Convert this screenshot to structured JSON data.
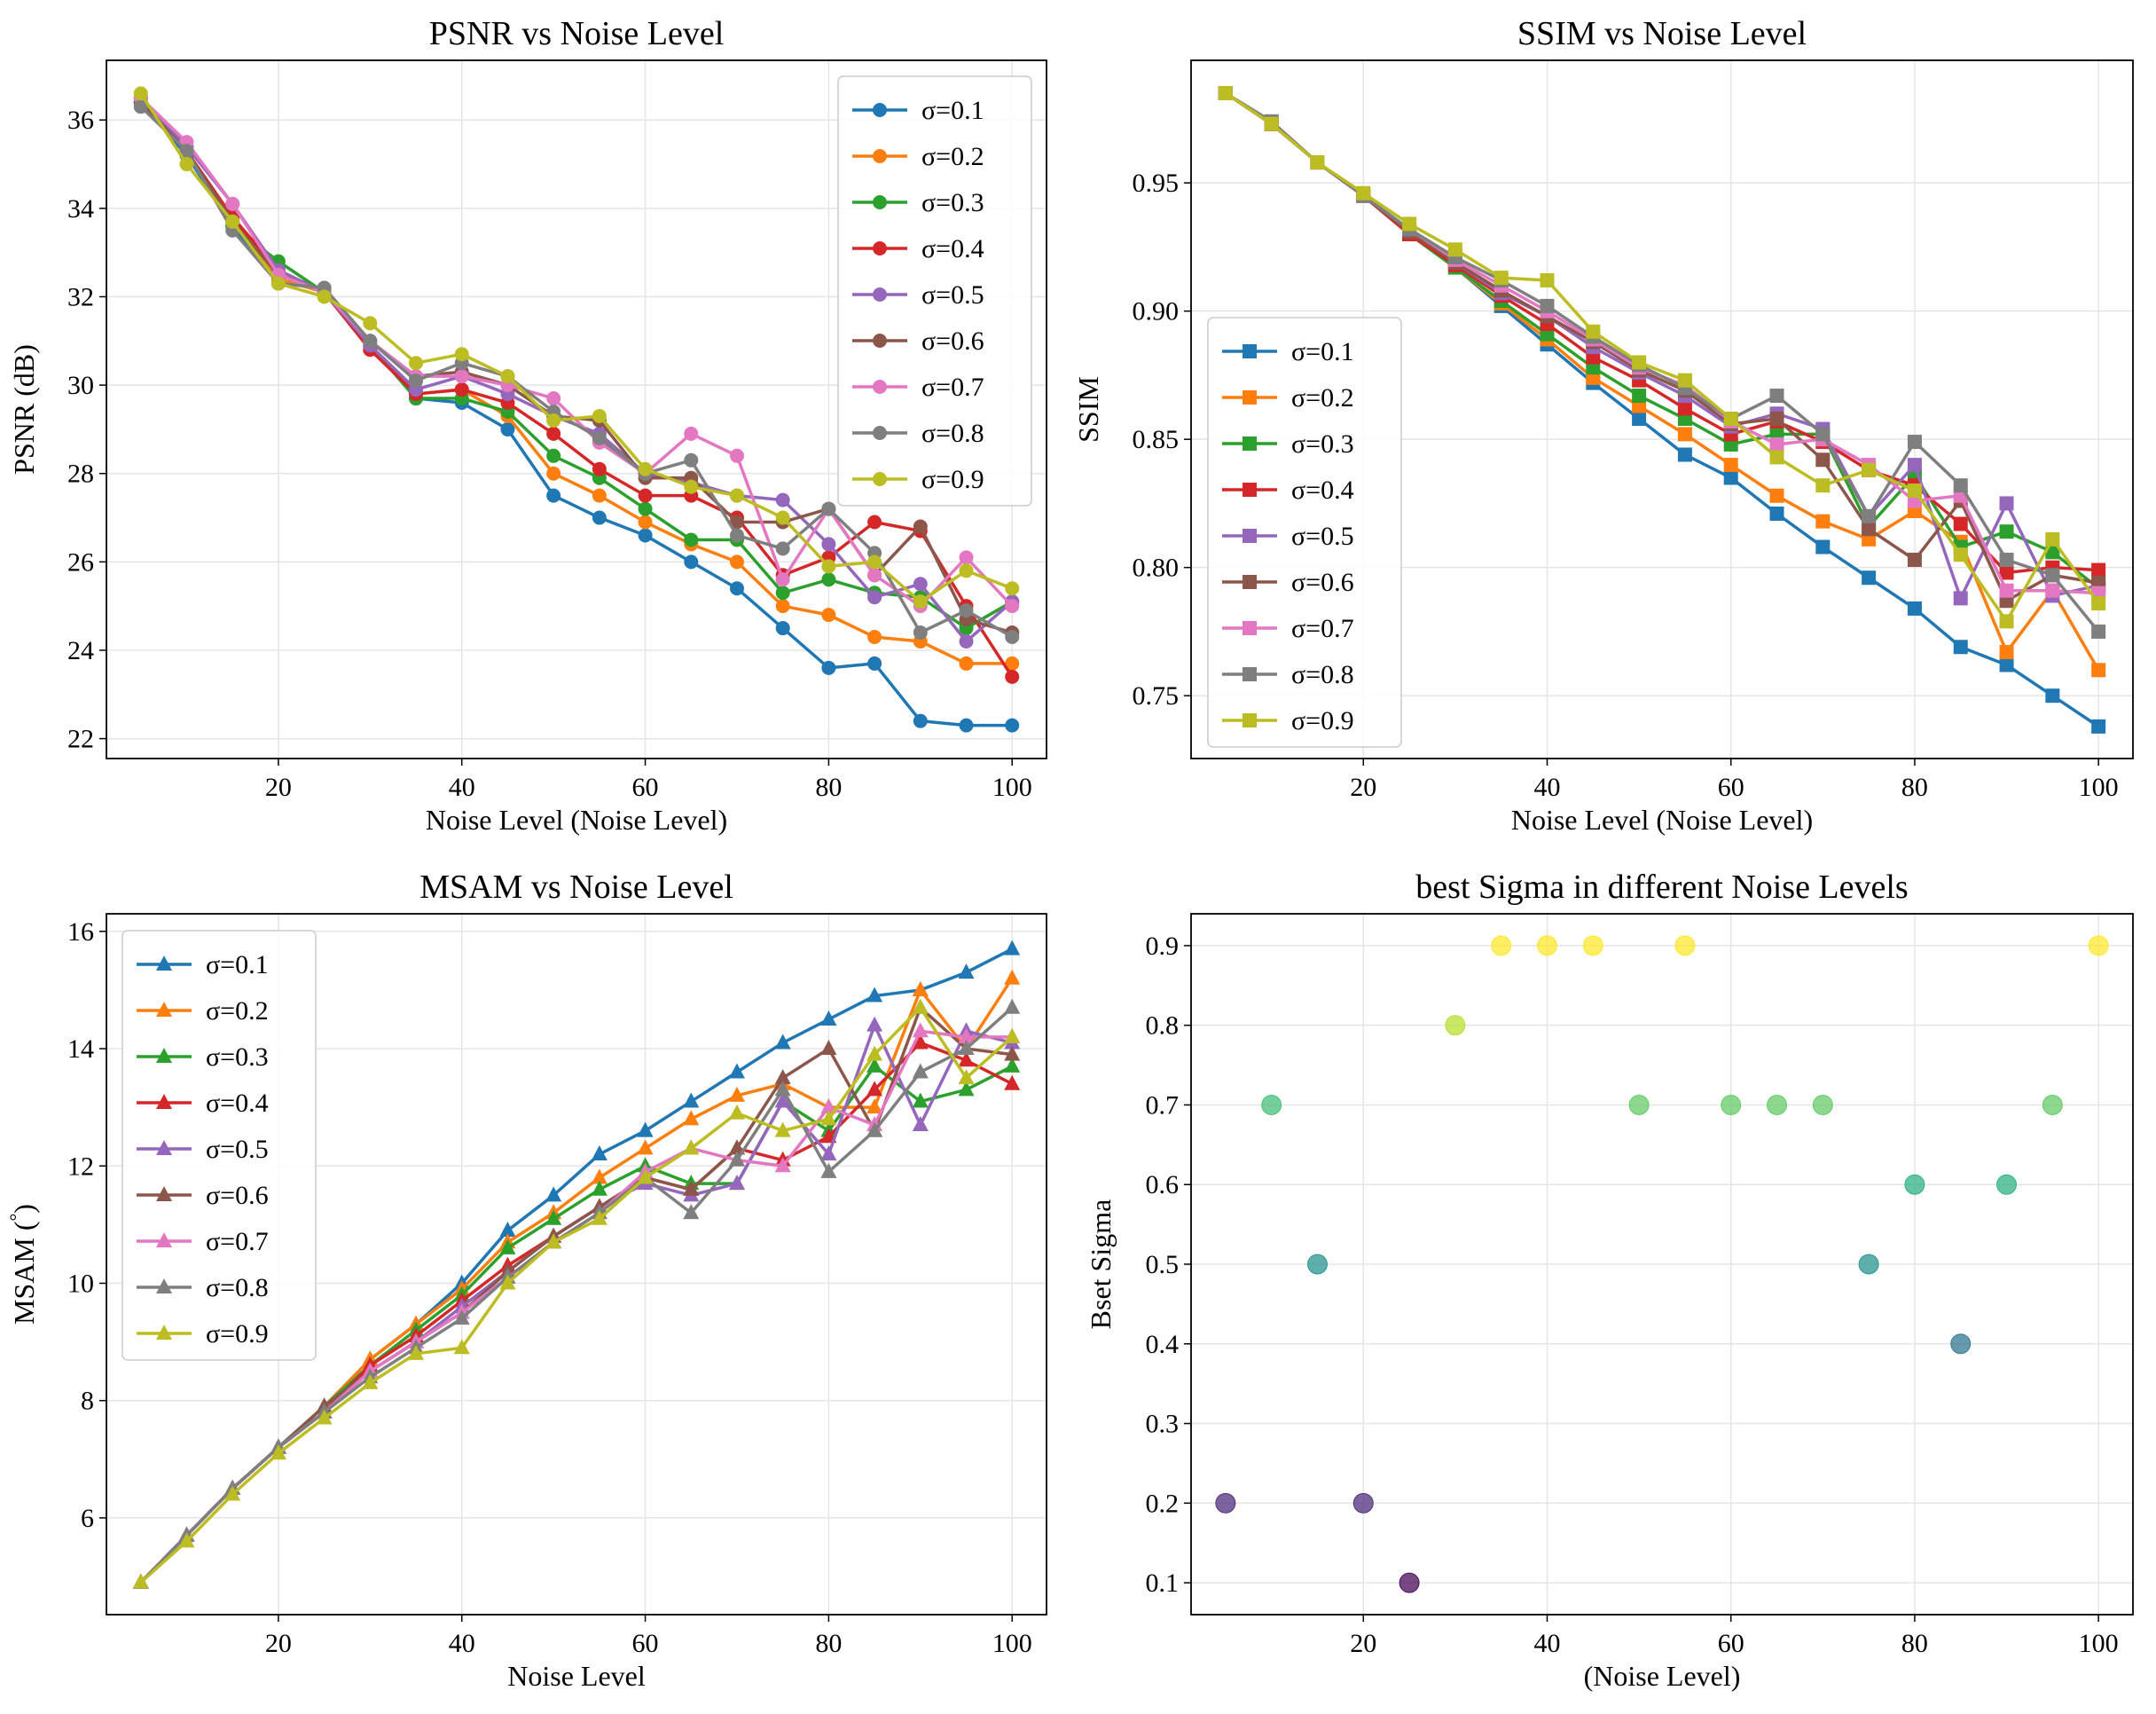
{
  "chart_data": [
    {
      "type": "line",
      "title": "PSNR vs Noise Level",
      "xlabel": "Noise Level (Noise Level)",
      "ylabel": "PSNR (dB)",
      "xlim": [
        1.25,
        103.75
      ],
      "ylim": [
        21.55,
        37.35
      ],
      "xticks": [
        20,
        40,
        60,
        80,
        100
      ],
      "yticks": [
        22,
        24,
        26,
        28,
        30,
        32,
        34,
        36
      ],
      "tick_decimals": 0,
      "marker": "circle",
      "grid": true,
      "legend_loc": "top-right",
      "x": [
        5,
        10,
        15,
        20,
        25,
        30,
        35,
        40,
        45,
        50,
        55,
        60,
        65,
        70,
        75,
        80,
        85,
        90,
        95,
        100
      ],
      "series": [
        {
          "name": "σ=0.1",
          "color": "#1f77b4",
          "values": [
            36.4,
            35.2,
            33.6,
            32.3,
            32.2,
            30.9,
            29.7,
            29.6,
            29.0,
            27.5,
            27.0,
            26.6,
            26.0,
            25.4,
            24.5,
            23.6,
            23.7,
            22.4,
            22.3,
            22.3
          ]
        },
        {
          "name": "σ=0.2",
          "color": "#ff7f0e",
          "values": [
            36.4,
            35.3,
            33.7,
            32.4,
            32.1,
            30.9,
            29.8,
            29.9,
            29.3,
            28.0,
            27.5,
            26.9,
            26.4,
            26.0,
            25.0,
            24.8,
            24.3,
            24.2,
            23.7,
            23.7
          ]
        },
        {
          "name": "σ=0.3",
          "color": "#2ca02c",
          "values": [
            36.4,
            35.3,
            33.6,
            32.8,
            32.1,
            30.9,
            29.7,
            29.7,
            29.4,
            28.4,
            27.9,
            27.2,
            26.5,
            26.5,
            25.3,
            25.6,
            25.3,
            25.2,
            24.5,
            25.1
          ]
        },
        {
          "name": "σ=0.4",
          "color": "#d62728",
          "values": [
            36.5,
            35.3,
            33.8,
            32.6,
            32.1,
            30.8,
            29.8,
            29.9,
            29.6,
            28.9,
            28.1,
            27.5,
            27.5,
            27.0,
            25.7,
            26.1,
            26.9,
            26.7,
            25.0,
            23.4
          ]
        },
        {
          "name": "σ=0.5",
          "color": "#9467bd",
          "values": [
            36.5,
            35.4,
            34.1,
            32.6,
            32.1,
            30.9,
            29.9,
            30.2,
            29.8,
            29.3,
            28.9,
            28.0,
            27.8,
            27.5,
            27.4,
            26.4,
            25.2,
            25.5,
            24.2,
            25.1
          ]
        },
        {
          "name": "σ=0.6",
          "color": "#8c564b",
          "values": [
            36.4,
            35.3,
            33.7,
            32.5,
            32.1,
            31.0,
            30.2,
            30.3,
            30.0,
            29.3,
            29.2,
            27.9,
            27.9,
            26.9,
            26.9,
            27.2,
            25.7,
            26.8,
            24.7,
            24.4
          ]
        },
        {
          "name": "σ=0.7",
          "color": "#e377c2",
          "values": [
            36.5,
            35.5,
            34.1,
            32.5,
            32.1,
            31.0,
            30.2,
            30.2,
            30.0,
            29.7,
            28.7,
            28.0,
            28.9,
            28.4,
            25.6,
            27.2,
            25.7,
            25.0,
            26.1,
            25.0
          ]
        },
        {
          "name": "σ=0.8",
          "color": "#7f7f7f",
          "values": [
            36.3,
            35.3,
            33.5,
            32.3,
            32.2,
            31.0,
            30.1,
            30.5,
            30.2,
            29.4,
            28.8,
            28.0,
            28.3,
            26.6,
            26.3,
            27.2,
            26.2,
            24.4,
            24.9,
            24.3
          ]
        },
        {
          "name": "σ=0.9",
          "color": "#bcbd22",
          "values": [
            36.6,
            35.0,
            33.7,
            32.3,
            32.0,
            31.4,
            30.5,
            30.7,
            30.2,
            29.2,
            29.3,
            28.1,
            27.7,
            27.5,
            27.0,
            25.9,
            26.0,
            25.1,
            25.8,
            25.4
          ]
        }
      ]
    },
    {
      "type": "line",
      "title": "SSIM vs Noise Level",
      "xlabel": "Noise Level (Noise Level)",
      "ylabel": "SSIM",
      "xlim": [
        1.25,
        103.75
      ],
      "ylim": [
        0.7255,
        0.9978
      ],
      "xticks": [
        20,
        40,
        60,
        80,
        100
      ],
      "yticks": [
        0.75,
        0.8,
        0.85,
        0.9,
        0.95
      ],
      "tick_decimals": 2,
      "marker": "square",
      "grid": true,
      "legend_loc": "center-left",
      "x": [
        5,
        10,
        15,
        20,
        25,
        30,
        35,
        40,
        45,
        50,
        55,
        60,
        65,
        70,
        75,
        80,
        85,
        90,
        95,
        100
      ],
      "series": [
        {
          "name": "σ=0.1",
          "color": "#1f77b4",
          "values": [
            0.985,
            0.973,
            0.958,
            0.945,
            0.93,
            0.917,
            0.902,
            0.887,
            0.872,
            0.858,
            0.844,
            0.835,
            0.821,
            0.808,
            0.796,
            0.784,
            0.769,
            0.762,
            0.75,
            0.738
          ]
        },
        {
          "name": "σ=0.2",
          "color": "#ff7f0e",
          "values": [
            0.985,
            0.973,
            0.958,
            0.945,
            0.93,
            0.917,
            0.903,
            0.889,
            0.874,
            0.863,
            0.852,
            0.84,
            0.828,
            0.818,
            0.811,
            0.822,
            0.81,
            0.767,
            0.791,
            0.76
          ]
        },
        {
          "name": "σ=0.3",
          "color": "#2ca02c",
          "values": [
            0.985,
            0.973,
            0.958,
            0.945,
            0.93,
            0.917,
            0.904,
            0.891,
            0.878,
            0.867,
            0.858,
            0.848,
            0.852,
            0.852,
            0.816,
            0.836,
            0.808,
            0.814,
            0.806,
            0.792
          ]
        },
        {
          "name": "σ=0.4",
          "color": "#d62728",
          "values": [
            0.985,
            0.973,
            0.958,
            0.945,
            0.93,
            0.918,
            0.906,
            0.895,
            0.882,
            0.873,
            0.862,
            0.852,
            0.857,
            0.849,
            0.838,
            0.832,
            0.817,
            0.798,
            0.8,
            0.799
          ]
        },
        {
          "name": "σ=0.5",
          "color": "#9467bd",
          "values": [
            0.985,
            0.973,
            0.958,
            0.945,
            0.931,
            0.919,
            0.907,
            0.898,
            0.886,
            0.876,
            0.867,
            0.855,
            0.86,
            0.854,
            0.82,
            0.84,
            0.788,
            0.825,
            0.789,
            0.793
          ]
        },
        {
          "name": "σ=0.6",
          "color": "#8c564b",
          "values": [
            0.985,
            0.973,
            0.958,
            0.945,
            0.931,
            0.919,
            0.908,
            0.898,
            0.888,
            0.877,
            0.869,
            0.856,
            0.858,
            0.842,
            0.815,
            0.803,
            0.826,
            0.787,
            0.797,
            0.794
          ]
        },
        {
          "name": "σ=0.7",
          "color": "#e377c2",
          "values": [
            0.985,
            0.973,
            0.958,
            0.945,
            0.932,
            0.92,
            0.91,
            0.9,
            0.889,
            0.878,
            0.871,
            0.857,
            0.848,
            0.85,
            0.84,
            0.826,
            0.828,
            0.791,
            0.791,
            0.79
          ]
        },
        {
          "name": "σ=0.8",
          "color": "#7f7f7f",
          "values": [
            0.985,
            0.974,
            0.958,
            0.945,
            0.932,
            0.921,
            0.912,
            0.902,
            0.89,
            0.879,
            0.87,
            0.858,
            0.867,
            0.852,
            0.82,
            0.849,
            0.832,
            0.803,
            0.797,
            0.775
          ]
        },
        {
          "name": "σ=0.9",
          "color": "#bcbd22",
          "values": [
            0.985,
            0.973,
            0.958,
            0.946,
            0.934,
            0.924,
            0.913,
            0.912,
            0.892,
            0.88,
            0.873,
            0.858,
            0.843,
            0.832,
            0.838,
            0.83,
            0.805,
            0.779,
            0.811,
            0.786
          ]
        }
      ]
    },
    {
      "type": "line",
      "title": "MSAM vs Noise Level",
      "xlabel": "Noise Level",
      "ylabel": "MSAM (°)",
      "ylabel_main": "MSAM (",
      "ylabel_sup": "°",
      "ylabel_end": ")",
      "xlim": [
        1.25,
        103.75
      ],
      "ylim": [
        4.35,
        16.3
      ],
      "xticks": [
        20,
        40,
        60,
        80,
        100
      ],
      "yticks": [
        6,
        8,
        10,
        12,
        14,
        16
      ],
      "tick_decimals": 0,
      "marker": "triangle",
      "grid": true,
      "legend_loc": "top-left",
      "x": [
        5,
        10,
        15,
        20,
        25,
        30,
        35,
        40,
        45,
        50,
        55,
        60,
        65,
        70,
        75,
        80,
        85,
        90,
        95,
        100
      ],
      "series": [
        {
          "name": "σ=0.1",
          "color": "#1f77b4",
          "values": [
            4.9,
            5.7,
            6.5,
            7.2,
            7.9,
            8.7,
            9.3,
            10.0,
            10.9,
            11.5,
            12.2,
            12.6,
            13.1,
            13.6,
            14.1,
            14.5,
            14.9,
            15.0,
            15.3,
            15.7
          ]
        },
        {
          "name": "σ=0.2",
          "color": "#ff7f0e",
          "values": [
            4.9,
            5.7,
            6.5,
            7.2,
            7.9,
            8.7,
            9.3,
            9.9,
            10.7,
            11.2,
            11.8,
            12.3,
            12.8,
            13.2,
            13.4,
            13.0,
            13.0,
            15.0,
            14.0,
            15.2
          ]
        },
        {
          "name": "σ=0.3",
          "color": "#2ca02c",
          "values": [
            4.9,
            5.7,
            6.5,
            7.2,
            7.9,
            8.6,
            9.2,
            9.8,
            10.6,
            11.1,
            11.6,
            12.0,
            11.7,
            11.7,
            13.1,
            12.6,
            13.7,
            13.1,
            13.3,
            13.7
          ]
        },
        {
          "name": "σ=0.4",
          "color": "#d62728",
          "values": [
            4.9,
            5.7,
            6.5,
            7.2,
            7.8,
            8.6,
            9.1,
            9.7,
            10.3,
            10.8,
            11.3,
            11.8,
            11.6,
            12.3,
            12.1,
            12.5,
            13.3,
            14.1,
            13.8,
            13.4
          ]
        },
        {
          "name": "σ=0.5",
          "color": "#9467bd",
          "values": [
            4.9,
            5.7,
            6.5,
            7.2,
            7.8,
            8.5,
            9.0,
            9.6,
            10.2,
            10.8,
            11.3,
            11.7,
            11.5,
            11.7,
            13.1,
            12.2,
            14.4,
            12.7,
            14.3,
            14.1
          ]
        },
        {
          "name": "σ=0.6",
          "color": "#8c564b",
          "values": [
            4.9,
            5.7,
            6.5,
            7.2,
            7.9,
            8.5,
            9.0,
            9.5,
            10.2,
            10.8,
            11.3,
            11.8,
            11.6,
            12.3,
            13.5,
            14.0,
            12.6,
            14.7,
            14.0,
            13.9
          ]
        },
        {
          "name": "σ=0.7",
          "color": "#e377c2",
          "values": [
            4.9,
            5.7,
            6.5,
            7.2,
            7.8,
            8.5,
            9.0,
            9.5,
            10.1,
            10.7,
            11.2,
            11.9,
            12.3,
            12.1,
            12.0,
            13.0,
            12.7,
            14.3,
            14.2,
            14.2
          ]
        },
        {
          "name": "σ=0.8",
          "color": "#7f7f7f",
          "values": [
            4.9,
            5.7,
            6.5,
            7.2,
            7.8,
            8.4,
            8.9,
            9.4,
            10.1,
            10.7,
            11.2,
            11.8,
            11.2,
            12.1,
            13.3,
            11.9,
            12.6,
            13.6,
            14.0,
            14.7
          ]
        },
        {
          "name": "σ=0.9",
          "color": "#bcbd22",
          "values": [
            4.9,
            5.6,
            6.4,
            7.1,
            7.7,
            8.3,
            8.8,
            8.9,
            10.0,
            10.7,
            11.1,
            11.8,
            12.3,
            12.9,
            12.6,
            12.8,
            13.9,
            14.7,
            13.5,
            14.2
          ]
        }
      ]
    },
    {
      "type": "scatter",
      "title": "best Sigma in different Noise Levels",
      "xlabel": "(Noise Level)",
      "ylabel": "Bset Sigma",
      "xlim": [
        1.25,
        103.75
      ],
      "ylim": [
        0.06,
        0.94
      ],
      "xticks": [
        20,
        40,
        60,
        80,
        100
      ],
      "yticks": [
        0.1,
        0.2,
        0.3,
        0.4,
        0.5,
        0.6,
        0.7,
        0.8,
        0.9
      ],
      "tick_decimals": 1,
      "colormap": "viridis",
      "grid": true,
      "x": [
        5,
        10,
        15,
        20,
        25,
        30,
        35,
        40,
        45,
        50,
        55,
        60,
        65,
        70,
        75,
        80,
        85,
        90,
        95,
        100
      ],
      "y": [
        0.2,
        0.7,
        0.5,
        0.2,
        0.1,
        0.8,
        0.9,
        0.9,
        0.9,
        0.7,
        0.9,
        0.7,
        0.7,
        0.7,
        0.5,
        0.6,
        0.4,
        0.6,
        0.7,
        0.9
      ],
      "colors": [
        "#482878",
        "#3fbc73",
        "#21918c",
        "#482878",
        "#440154",
        "#b5de2b",
        "#fde725",
        "#fde725",
        "#fde725",
        "#5ec962",
        "#fde725",
        "#5ec962",
        "#5ec962",
        "#5ec962",
        "#21918c",
        "#28ae80",
        "#2c728e",
        "#28ae80",
        "#5ec962",
        "#fde725"
      ]
    }
  ]
}
